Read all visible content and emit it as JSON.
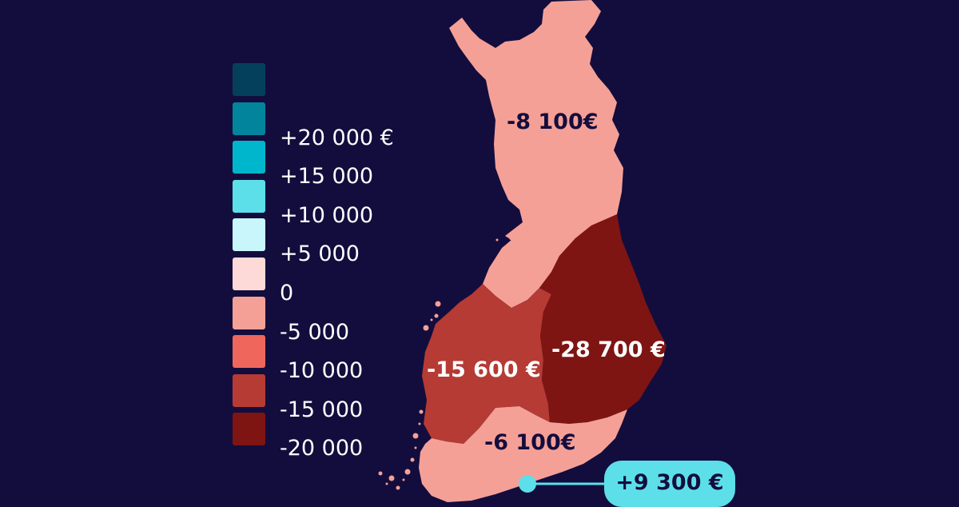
{
  "colors": {
    "background": "#130d3d",
    "north_region": "#f5a097",
    "west_region": "#b53b34",
    "east_region": "#7e1513",
    "south_region": "#f5a097",
    "callout": "#5ddfe9"
  },
  "legend": [
    {
      "label": "",
      "color": "#04405c"
    },
    {
      "label": "+20 000 €",
      "color": "#02849c"
    },
    {
      "label": "+15 000",
      "color": "#00b6cc"
    },
    {
      "label": "+10 000",
      "color": "#5ddfe9"
    },
    {
      "label": "+5 000",
      "color": "#c8f6fb"
    },
    {
      "label": "0",
      "color": "#fddad8"
    },
    {
      "label": "-5 000",
      "color": "#f5a097"
    },
    {
      "label": "-10 000",
      "color": "#ef665c"
    },
    {
      "label": "-15 000",
      "color": "#b53b34"
    },
    {
      "label": "-20 000",
      "color": "#7e1513"
    }
  ],
  "regions": {
    "north": {
      "value": "-8 100€"
    },
    "west": {
      "value": "-15 600 €"
    },
    "east": {
      "value": "-28 700 €"
    },
    "south": {
      "value": "-6 100€"
    },
    "capital_callout": {
      "value": "+9 300 €"
    }
  }
}
